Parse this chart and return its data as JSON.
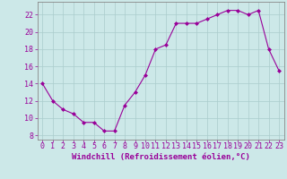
{
  "x": [
    0,
    1,
    2,
    3,
    4,
    5,
    6,
    7,
    8,
    9,
    10,
    11,
    12,
    13,
    14,
    15,
    16,
    17,
    18,
    19,
    20,
    21,
    22,
    23
  ],
  "y": [
    14,
    12,
    11,
    10.5,
    9.5,
    9.5,
    8.5,
    8.5,
    11.5,
    13,
    15,
    18,
    18.5,
    21,
    21,
    21,
    21.5,
    22,
    22.5,
    22.5,
    22,
    22.5,
    18,
    15.5
  ],
  "line_color": "#990099",
  "marker": "D",
  "marker_size": 2.0,
  "bg_color": "#cce8e8",
  "grid_color": "#aacccc",
  "xlabel": "Windchill (Refroidissement éolien,°C)",
  "xlabel_fontsize": 6.5,
  "xtick_labels": [
    "0",
    "1",
    "2",
    "3",
    "4",
    "5",
    "6",
    "7",
    "8",
    "9",
    "10",
    "11",
    "12",
    "13",
    "14",
    "15",
    "16",
    "17",
    "18",
    "19",
    "20",
    "21",
    "22",
    "23"
  ],
  "yticks": [
    8,
    10,
    12,
    14,
    16,
    18,
    20,
    22
  ],
  "ylim": [
    7.5,
    23.5
  ],
  "xlim": [
    -0.5,
    23.5
  ],
  "tick_color": "#990099",
  "tick_fontsize": 6.0,
  "spine_color": "#888888"
}
